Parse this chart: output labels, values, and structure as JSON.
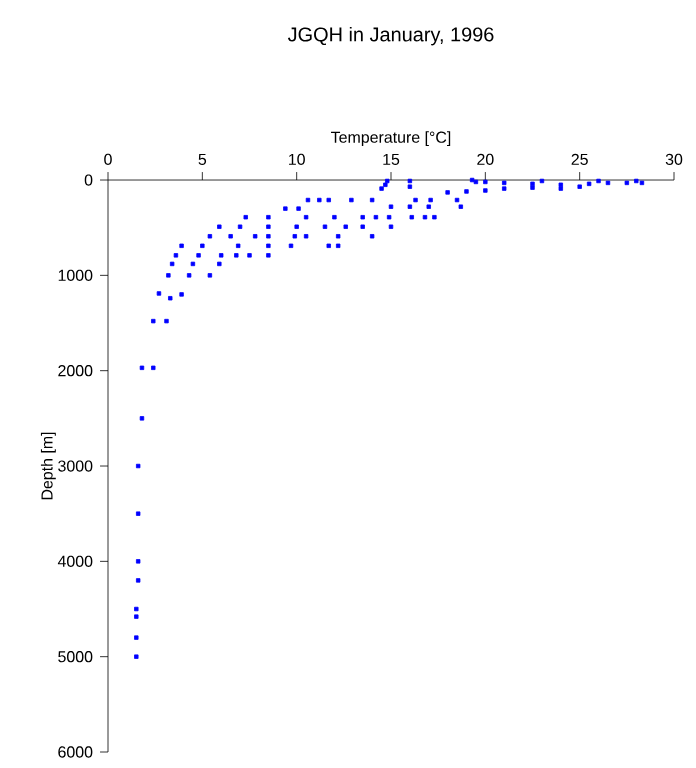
{
  "chart_data": {
    "type": "scatter",
    "title": "JGQH in January, 1996",
    "xlabel": "Temperature [°C]",
    "ylabel": "Depth [m]",
    "xlim": [
      0,
      30
    ],
    "ylim": [
      6000,
      0
    ],
    "xticks": [
      0,
      5,
      10,
      15,
      20,
      25,
      30
    ],
    "yticks": [
      0,
      1000,
      2000,
      3000,
      4000,
      5000,
      6000
    ],
    "marker": "square",
    "grid": false,
    "series": [
      {
        "color": "#0000ff",
        "x": [
          19.3,
          20,
          21,
          22.5,
          24,
          25.5,
          26.5,
          27.5,
          28.3,
          28,
          26,
          23,
          19.5,
          18,
          19,
          20,
          21,
          22.5,
          24,
          25,
          14.8,
          14.7,
          14.5,
          16,
          16,
          10.6,
          11.2,
          11.7,
          12.9,
          14,
          16.3,
          17.1,
          18.5,
          15,
          16,
          17,
          18.7,
          9.4,
          10.1,
          7.3,
          8.5,
          10.5,
          12,
          13.5,
          14.2,
          14.9,
          16.1,
          16.8,
          17.3,
          5.9,
          7,
          8.5,
          10,
          11.5,
          12.6,
          13.5,
          15,
          5.4,
          6.5,
          7.8,
          8.5,
          9.9,
          10.5,
          12.2,
          14,
          3.9,
          5,
          6.9,
          8.5,
          9.7,
          11.7,
          12.2,
          3.6,
          4.8,
          6,
          6.8,
          7.5,
          8.5,
          3.4,
          4.5,
          5.9,
          3.2,
          4.3,
          5.4,
          2.7,
          3.3,
          3.9,
          2.4,
          3.1,
          1.8,
          2.4,
          1.8,
          1.6,
          1.6,
          1.6,
          1.6,
          1.5,
          1.5,
          1.5,
          1.5
        ],
        "values": [
          0,
          20,
          30,
          40,
          50,
          40,
          30,
          30,
          30,
          10,
          10,
          10,
          20,
          130,
          120,
          110,
          90,
          80,
          90,
          70,
          10,
          50,
          90,
          10,
          70,
          210,
          210,
          210,
          210,
          210,
          210,
          210,
          210,
          280,
          280,
          280,
          280,
          300,
          300,
          390,
          390,
          390,
          390,
          390,
          390,
          390,
          390,
          390,
          390,
          490,
          490,
          490,
          490,
          490,
          490,
          490,
          490,
          590,
          590,
          590,
          590,
          590,
          590,
          590,
          590,
          690,
          690,
          690,
          690,
          690,
          690,
          690,
          790,
          790,
          790,
          790,
          790,
          790,
          880,
          880,
          880,
          1000,
          1000,
          1000,
          1190,
          1240,
          1200,
          1480,
          1480,
          1970,
          1970,
          2500,
          3000,
          3500,
          4000,
          4200,
          4500,
          4580,
          4800,
          5000
        ]
      }
    ]
  }
}
